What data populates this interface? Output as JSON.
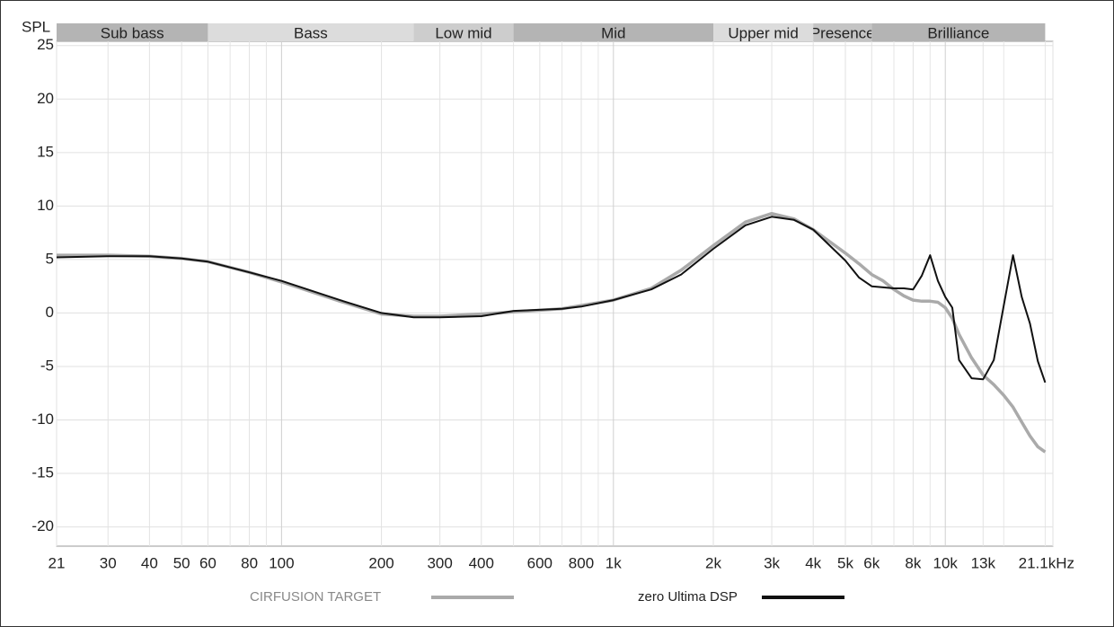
{
  "chart_data": {
    "type": "line",
    "y_label": "SPL",
    "log_x": true,
    "grid": true,
    "legend": "bottom",
    "xlim": [
      21,
      21100
    ],
    "ylim": [
      -21.8,
      25.4
    ],
    "yticks": [
      25,
      20,
      15,
      10,
      5,
      0,
      -5,
      -10,
      -15,
      -20
    ],
    "xticks": [
      21,
      30,
      40,
      50,
      60,
      80,
      100,
      200,
      300,
      400,
      600,
      800,
      {
        "value": 1000,
        "label": "1k"
      },
      {
        "value": 2000,
        "label": "2k"
      },
      {
        "value": 3000,
        "label": "3k"
      },
      {
        "value": 4000,
        "label": "4k"
      },
      {
        "value": 5000,
        "label": "5k"
      },
      {
        "value": 6000,
        "label": "6k"
      },
      {
        "value": 8000,
        "label": "8k"
      },
      {
        "value": 10000,
        "label": "10k"
      },
      {
        "value": 13000,
        "label": "13k"
      },
      {
        "value": 21100,
        "label": "21.1kHz"
      }
    ],
    "xminor": [
      70,
      90,
      500,
      700,
      900,
      7000,
      9000,
      15000,
      20000
    ],
    "bands": [
      {
        "label": "Sub bass",
        "from": 21,
        "to": 60,
        "color": "#b4b4b4"
      },
      {
        "label": "Bass",
        "from": 60,
        "to": 250,
        "color": "#dcdcdc"
      },
      {
        "label": "Low mid",
        "from": 250,
        "to": 500,
        "color": "#cdcdcd"
      },
      {
        "label": "Mid",
        "from": 500,
        "to": 2000,
        "color": "#b4b4b4"
      },
      {
        "label": "Upper mid",
        "from": 2000,
        "to": 4000,
        "color": "#dcdcdc"
      },
      {
        "label": "Presence",
        "from": 4000,
        "to": 6000,
        "color": "#c4c4c4"
      },
      {
        "label": "Brilliance",
        "from": 6000,
        "to": 20000,
        "color": "#b4b4b4"
      }
    ],
    "x": [
      21,
      30,
      40,
      50,
      60,
      80,
      100,
      150,
      200,
      250,
      300,
      400,
      500,
      700,
      800,
      1000,
      1300,
      1600,
      2000,
      2500,
      3000,
      3500,
      4000,
      5000,
      5500,
      6000,
      6500,
      7000,
      7500,
      8000,
      8500,
      9000,
      9500,
      10000,
      10500,
      11000,
      12000,
      13000,
      14000,
      15000,
      16000,
      17000,
      18000,
      19000,
      20000
    ],
    "series": [
      {
        "name": "CIRFUSION TARGET",
        "color": "#aaaaaa",
        "values": [
          5.4,
          5.4,
          5.3,
          5.1,
          4.8,
          3.8,
          2.9,
          1.1,
          -0.1,
          -0.3,
          -0.3,
          -0.1,
          0.1,
          0.4,
          0.7,
          1.2,
          2.3,
          4.0,
          6.3,
          8.5,
          9.3,
          8.8,
          7.8,
          5.6,
          4.6,
          3.6,
          3.0,
          2.2,
          1.6,
          1.2,
          1.1,
          1.1,
          1.0,
          0.5,
          -0.5,
          -2.0,
          -4.2,
          -5.8,
          -6.7,
          -7.7,
          -8.8,
          -10.2,
          -11.5,
          -12.5,
          -13.0
        ]
      },
      {
        "name": "zero Ultima DSP",
        "color": "#111111",
        "values": [
          5.2,
          5.3,
          5.3,
          5.1,
          4.8,
          3.8,
          3.0,
          1.2,
          0.0,
          -0.4,
          -0.4,
          -0.3,
          0.2,
          0.4,
          0.6,
          1.2,
          2.2,
          3.6,
          6.0,
          8.2,
          9.0,
          8.7,
          7.8,
          4.9,
          3.3,
          2.5,
          2.4,
          2.3,
          2.3,
          2.2,
          3.5,
          5.4,
          3.0,
          1.5,
          0.5,
          -4.4,
          -6.1,
          -6.2,
          -4.4,
          0.7,
          5.4,
          1.5,
          -1.0,
          -4.5,
          -6.5
        ]
      }
    ]
  }
}
